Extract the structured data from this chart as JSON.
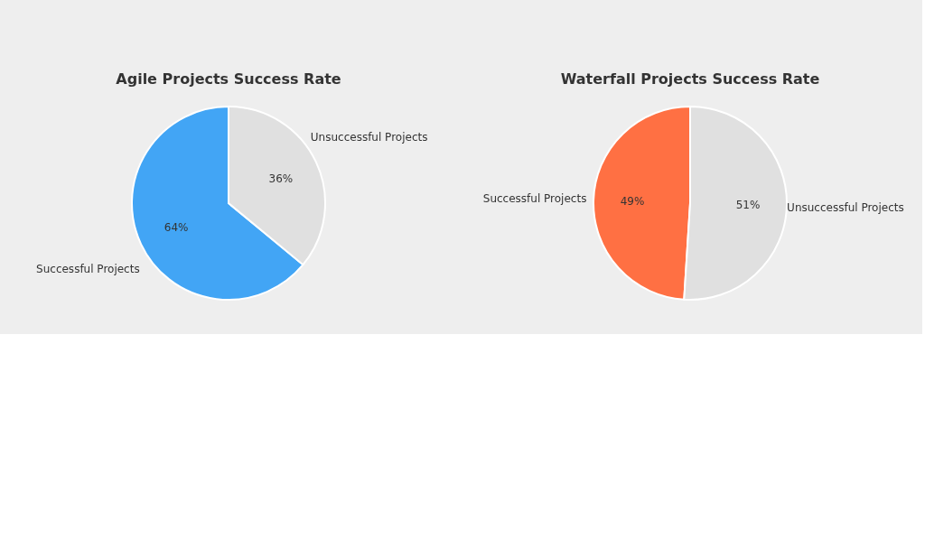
{
  "chart_data": [
    {
      "type": "pie",
      "title": "Agile Projects Success Rate",
      "categories": [
        "Successful Projects",
        "Unsuccessful Projects"
      ],
      "values": [
        64,
        36
      ],
      "colors": [
        "#42a5f5",
        "#e0e0e0"
      ],
      "value_labels": [
        "64%",
        "36%"
      ]
    },
    {
      "type": "pie",
      "title": "Waterfall Projects Success Rate",
      "categories": [
        "Successful Projects",
        "Unsuccessful Projects"
      ],
      "values": [
        49,
        51
      ],
      "colors": [
        "#ff7043",
        "#e0e0e0"
      ],
      "value_labels": [
        "49%",
        "51%"
      ]
    }
  ]
}
